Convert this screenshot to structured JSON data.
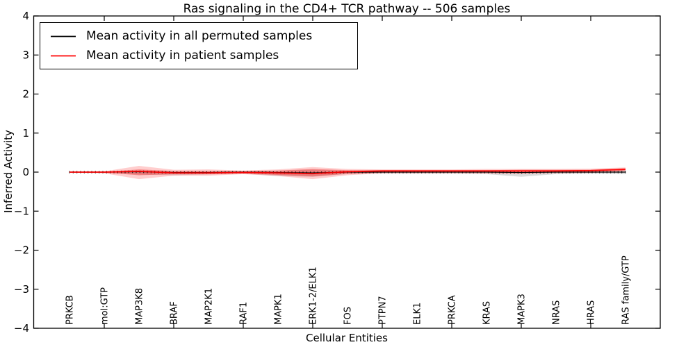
{
  "figure": {
    "title": "Ras signaling in the CD4+ TCR pathway -- 506 samples",
    "xlabel": "Cellular Entities",
    "ylabel": "Inferred Activity"
  },
  "legend": {
    "entries": [
      {
        "label": "Mean activity in all permuted samples",
        "color": "#000000"
      },
      {
        "label": "Mean activity in patient samples",
        "color": "#ff0000"
      }
    ]
  },
  "colors": {
    "frame": "#000000",
    "background": "#ffffff",
    "permuted_line": "#000000",
    "patient_line": "#ff0000",
    "permuted_band": "#8c8c8c",
    "patient_band": "#ff2020"
  },
  "chart_data": {
    "type": "line",
    "title": "Ras signaling in the CD4+ TCR pathway -- 506 samples",
    "xlabel": "Cellular Entities",
    "ylabel": "Inferred Activity",
    "ylim": [
      -4,
      4
    ],
    "yticks": [
      -4,
      -3,
      -2,
      -1,
      0,
      1,
      2,
      3,
      4
    ],
    "grid": false,
    "legend_position": "upper left",
    "categories": [
      "PRKCB",
      "mol:GTP",
      "MAP3K8",
      "BRAF",
      "MAP2K1",
      "RAF1",
      "MAPK1",
      "ERK1-2/ELK1",
      "FOS",
      "PTPN7",
      "ELK1",
      "PRKCA",
      "KRAS",
      "MAPK3",
      "NRAS",
      "HRAS",
      "RAS family/GTP"
    ],
    "series": [
      {
        "name": "Mean activity in all permuted samples",
        "color": "#000000",
        "values": [
          0.0,
          0.0,
          0.01,
          -0.01,
          -0.01,
          0.0,
          -0.01,
          -0.02,
          0.0,
          0.0,
          0.0,
          0.0,
          0.0,
          -0.01,
          0.0,
          0.0,
          0.0
        ]
      },
      {
        "name": "Mean activity in patient samples",
        "color": "#ff0000",
        "values": [
          0.0,
          0.0,
          0.02,
          -0.02,
          -0.02,
          -0.01,
          -0.02,
          -0.04,
          0.01,
          0.03,
          0.03,
          0.03,
          0.03,
          0.03,
          0.03,
          0.04,
          0.07
        ]
      }
    ],
    "bands": [
      {
        "name": "permuted-spread",
        "color": "#8c8c8c",
        "opacity": 0.3,
        "upper": [
          0.01,
          0.01,
          0.04,
          0.02,
          0.02,
          0.02,
          0.03,
          0.06,
          0.03,
          0.02,
          0.02,
          0.02,
          0.02,
          0.02,
          0.02,
          0.03,
          0.04
        ],
        "lower": [
          -0.01,
          -0.02,
          -0.06,
          -0.08,
          -0.06,
          -0.04,
          -0.1,
          -0.12,
          -0.05,
          -0.04,
          -0.04,
          -0.04,
          -0.05,
          -0.12,
          -0.05,
          -0.04,
          -0.05
        ]
      },
      {
        "name": "patient-spread-outer",
        "color": "#ff2020",
        "opacity": 0.22,
        "upper": [
          0.01,
          0.02,
          0.16,
          0.06,
          0.07,
          0.04,
          0.07,
          0.13,
          0.08,
          0.07,
          0.07,
          0.07,
          0.08,
          0.08,
          0.08,
          0.09,
          0.12
        ],
        "lower": [
          -0.01,
          -0.03,
          -0.18,
          -0.09,
          -0.09,
          -0.05,
          -0.1,
          -0.18,
          -0.08,
          -0.03,
          -0.03,
          -0.03,
          -0.04,
          -0.05,
          -0.03,
          -0.02,
          0.02
        ]
      },
      {
        "name": "patient-spread-inner",
        "color": "#ee2222",
        "opacity": 0.4,
        "upper": [
          0.005,
          0.01,
          0.07,
          0.03,
          0.03,
          0.02,
          0.04,
          0.08,
          0.05,
          0.05,
          0.05,
          0.05,
          0.05,
          0.06,
          0.06,
          0.06,
          0.1
        ],
        "lower": [
          -0.005,
          -0.01,
          -0.08,
          -0.05,
          -0.05,
          -0.03,
          -0.07,
          -0.11,
          -0.04,
          -0.01,
          -0.01,
          -0.01,
          -0.01,
          -0.02,
          0.0,
          0.0,
          0.04
        ]
      }
    ]
  }
}
